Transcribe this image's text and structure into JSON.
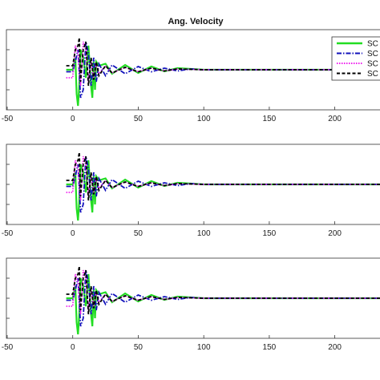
{
  "chart_data": {
    "type": "line",
    "title": "Ang. Velocity",
    "xlim": [
      -50,
      240
    ],
    "x_ticks": [
      -50,
      0,
      50,
      100,
      150,
      200
    ],
    "x_tick_labels": [
      "-50",
      "0",
      "50",
      "100",
      "150",
      "200"
    ],
    "grid": false,
    "legend_placement": "top-right",
    "legend_entries": [
      "SC",
      "SC",
      "SC",
      "SC"
    ],
    "series_styles": [
      {
        "color": "#22dd22",
        "dash": "solid"
      },
      {
        "color": "#1111bb",
        "dash": "dash-dot"
      },
      {
        "color": "#ee22ee",
        "dash": "dotted"
      },
      {
        "color": "#000000",
        "dash": "dashed"
      }
    ],
    "panels": [
      {
        "series": [
          {
            "x": [
              -5,
              0,
              2,
              3,
              4,
              5,
              6,
              8,
              10,
              12,
              14,
              15,
              16,
              17,
              18,
              20,
              25,
              30,
              40,
              50,
              60,
              70,
              80,
              90,
              100,
              240
            ],
            "y": [
              0,
              0,
              0.3,
              -0.6,
              -0.9,
              -0.4,
              0.5,
              0.3,
              -0.2,
              0.6,
              -0.4,
              -0.7,
              0.2,
              -0.5,
              0.2,
              0.1,
              0.15,
              -0.1,
              0.12,
              -0.08,
              0.08,
              -0.04,
              0.04,
              0.02,
              0,
              0
            ]
          },
          {
            "x": [
              -5,
              0,
              2,
              4,
              6,
              8,
              10,
              12,
              14,
              16,
              18,
              20,
              25,
              30,
              40,
              50,
              60,
              70,
              80,
              90,
              100,
              240
            ],
            "y": [
              -0.05,
              -0.05,
              0.2,
              0.5,
              -0.7,
              -0.5,
              0.7,
              0.4,
              -0.4,
              0.3,
              -0.3,
              0.15,
              -0.15,
              0.12,
              -0.1,
              0.08,
              -0.05,
              0.04,
              -0.03,
              0.02,
              0,
              0
            ]
          },
          {
            "x": [
              -5,
              0,
              2,
              4,
              6,
              8,
              10,
              12,
              14,
              16,
              18,
              20,
              25,
              30,
              40,
              50,
              60,
              70,
              80,
              90,
              100,
              240
            ],
            "y": [
              -0.2,
              -0.2,
              0.6,
              0.4,
              -0.4,
              0.7,
              0.5,
              -0.3,
              0.2,
              -0.2,
              0.15,
              -0.1,
              0.1,
              -0.08,
              0.06,
              -0.05,
              0.04,
              -0.03,
              0.02,
              0.01,
              0,
              0
            ]
          },
          {
            "x": [
              -5,
              0,
              2,
              4,
              5,
              6,
              8,
              10,
              12,
              14,
              16,
              18,
              20,
              25,
              30,
              40,
              50,
              60,
              70,
              80,
              90,
              100,
              240
            ],
            "y": [
              0.1,
              0.1,
              0.5,
              0.6,
              0.8,
              -0.3,
              0.5,
              0.7,
              -0.4,
              0.3,
              -0.25,
              0.2,
              -0.15,
              0.1,
              -0.08,
              0.06,
              -0.05,
              0.04,
              -0.03,
              0.02,
              0.01,
              0,
              0
            ]
          }
        ]
      },
      {
        "series": [
          {
            "x": [
              -5,
              0,
              2,
              3,
              4,
              5,
              6,
              8,
              10,
              12,
              14,
              15,
              16,
              17,
              18,
              20,
              25,
              30,
              40,
              50,
              60,
              70,
              80,
              90,
              100,
              240
            ],
            "y": [
              0,
              0,
              0.3,
              -0.6,
              -0.9,
              -0.4,
              0.5,
              0.3,
              -0.2,
              0.6,
              -0.4,
              -0.7,
              0.2,
              -0.5,
              0.2,
              0.1,
              0.15,
              -0.1,
              0.12,
              -0.08,
              0.08,
              -0.04,
              0.04,
              0.02,
              0,
              0
            ]
          },
          {
            "x": [
              -5,
              0,
              2,
              4,
              6,
              8,
              10,
              12,
              14,
              16,
              18,
              20,
              25,
              30,
              40,
              50,
              60,
              70,
              80,
              90,
              100,
              240
            ],
            "y": [
              -0.05,
              -0.05,
              0.2,
              0.5,
              -0.7,
              -0.5,
              0.7,
              0.4,
              -0.4,
              0.3,
              -0.3,
              0.15,
              -0.15,
              0.12,
              -0.1,
              0.08,
              -0.05,
              0.04,
              -0.03,
              0.02,
              0,
              0
            ]
          },
          {
            "x": [
              -5,
              0,
              2,
              4,
              6,
              8,
              10,
              12,
              14,
              16,
              18,
              20,
              25,
              30,
              40,
              50,
              60,
              70,
              80,
              90,
              100,
              240
            ],
            "y": [
              -0.2,
              -0.2,
              0.6,
              0.4,
              -0.4,
              0.7,
              0.5,
              -0.3,
              0.2,
              -0.2,
              0.15,
              -0.1,
              0.1,
              -0.08,
              0.06,
              -0.05,
              0.04,
              -0.03,
              0.02,
              0.01,
              0,
              0
            ]
          },
          {
            "x": [
              -5,
              0,
              2,
              4,
              5,
              6,
              8,
              10,
              12,
              14,
              16,
              18,
              20,
              25,
              30,
              40,
              50,
              60,
              70,
              80,
              90,
              100,
              240
            ],
            "y": [
              0.1,
              0.1,
              0.5,
              0.6,
              0.8,
              -0.3,
              0.5,
              0.7,
              -0.4,
              0.3,
              -0.25,
              0.2,
              -0.15,
              0.1,
              -0.08,
              0.06,
              -0.05,
              0.04,
              -0.03,
              0.02,
              0.01,
              0,
              0
            ]
          }
        ]
      },
      {
        "series": [
          {
            "x": [
              -5,
              0,
              2,
              3,
              4,
              5,
              6,
              8,
              10,
              12,
              14,
              15,
              16,
              17,
              18,
              20,
              25,
              30,
              40,
              50,
              60,
              70,
              80,
              90,
              100,
              240
            ],
            "y": [
              0,
              0,
              0.3,
              -0.6,
              -0.9,
              -0.4,
              0.5,
              0.3,
              -0.2,
              0.6,
              -0.4,
              -0.7,
              0.2,
              -0.5,
              0.2,
              0.1,
              0.15,
              -0.1,
              0.12,
              -0.08,
              0.08,
              -0.04,
              0.04,
              0.02,
              0,
              0
            ]
          },
          {
            "x": [
              -5,
              0,
              2,
              4,
              6,
              8,
              10,
              12,
              14,
              16,
              18,
              20,
              25,
              30,
              40,
              50,
              60,
              70,
              80,
              90,
              100,
              240
            ],
            "y": [
              -0.05,
              -0.05,
              0.2,
              0.5,
              -0.7,
              -0.5,
              0.7,
              0.4,
              -0.4,
              0.3,
              -0.3,
              0.15,
              -0.15,
              0.12,
              -0.1,
              0.08,
              -0.05,
              0.04,
              -0.03,
              0.02,
              0,
              0
            ]
          },
          {
            "x": [
              -5,
              0,
              2,
              4,
              6,
              8,
              10,
              12,
              14,
              16,
              18,
              20,
              25,
              30,
              40,
              50,
              60,
              70,
              80,
              90,
              100,
              240
            ],
            "y": [
              -0.2,
              -0.2,
              0.6,
              0.4,
              -0.4,
              0.7,
              0.5,
              -0.3,
              0.2,
              -0.2,
              0.15,
              -0.1,
              0.1,
              -0.08,
              0.06,
              -0.05,
              0.04,
              -0.03,
              0.02,
              0.01,
              0,
              0
            ]
          },
          {
            "x": [
              -5,
              0,
              2,
              4,
              5,
              6,
              8,
              10,
              12,
              14,
              16,
              18,
              20,
              25,
              30,
              40,
              50,
              60,
              70,
              80,
              90,
              100,
              240
            ],
            "y": [
              0.1,
              0.1,
              0.5,
              0.6,
              0.8,
              -0.3,
              0.5,
              0.7,
              -0.4,
              0.3,
              -0.25,
              0.2,
              -0.15,
              0.1,
              -0.08,
              0.06,
              -0.05,
              0.04,
              -0.03,
              0.02,
              0.01,
              0,
              0
            ]
          }
        ]
      }
    ]
  }
}
